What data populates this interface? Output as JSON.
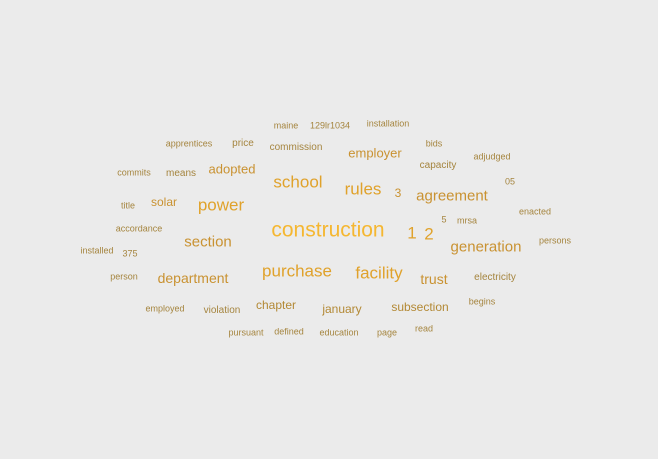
{
  "colors": {
    "background": "#ebebeb",
    "tier1": "#f5b731",
    "tier2": "#e0a22b",
    "tier3": "#c99231",
    "tier4": "#b38935",
    "tier5": "#a5853f"
  },
  "words": [
    "construction",
    "1",
    "2",
    "school",
    "rules",
    "power",
    "section",
    "purchase",
    "facility",
    "agreement",
    "generation",
    "department",
    "trust",
    "employer",
    "adopted",
    "solar",
    "chapter",
    "3",
    "january",
    "subsection",
    "means",
    "commission",
    "price",
    "apprentices",
    "maine",
    "129lr1034",
    "installation",
    "bids",
    "adjudged",
    "capacity",
    "commits",
    "05",
    "title",
    "enacted",
    "5",
    "mrsa",
    "accordance",
    "persons",
    "installed",
    "375",
    "person",
    "electricity",
    "employed",
    "violation",
    "begins",
    "pursuant",
    "defined",
    "education",
    "page",
    "read"
  ]
}
